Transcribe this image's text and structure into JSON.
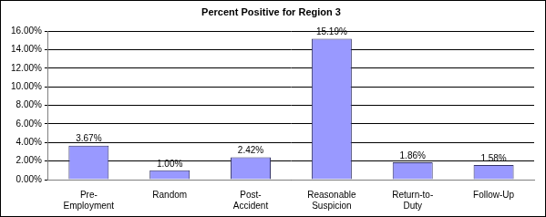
{
  "chart_data": {
    "type": "bar",
    "title": "Percent Positive for Region 3",
    "categories": [
      "Pre-Employment",
      "Random",
      "Post-Accident",
      "Reasonable Suspicion",
      "Return-to-Duty",
      "Follow-Up"
    ],
    "values": [
      3.67,
      1.0,
      2.42,
      15.19,
      1.86,
      1.58
    ],
    "value_labels": [
      "3.67%",
      "1.00%",
      "2.42%",
      "15.19%",
      "1.86%",
      "1.58%"
    ],
    "color": "#9999ff",
    "ylim": [
      0,
      16
    ],
    "yticks": [
      {
        "value": 0,
        "label": "0.00%"
      },
      {
        "value": 2,
        "label": "2.00%"
      },
      {
        "value": 4,
        "label": "4.00%"
      },
      {
        "value": 6,
        "label": "6.00%"
      },
      {
        "value": 8,
        "label": "8.00%"
      },
      {
        "value": 10,
        "label": "10.00%"
      },
      {
        "value": 12,
        "label": "12.00%"
      },
      {
        "value": 14,
        "label": "14.00%"
      },
      {
        "value": 16,
        "label": "16.00%"
      }
    ],
    "grid": true,
    "data_labels": true
  }
}
